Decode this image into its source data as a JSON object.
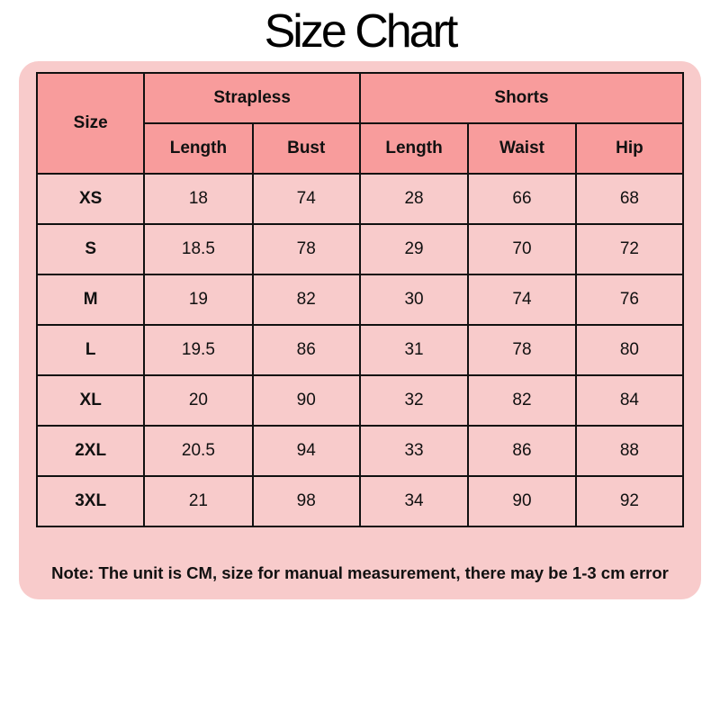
{
  "title": "Size Chart",
  "colors": {
    "panel": "#f8cbcb",
    "header": "#f89c9c"
  },
  "table": {
    "size_header": "Size",
    "groups": [
      "Strapless",
      "Shorts"
    ],
    "columns": [
      "Length",
      "Bust",
      "Length",
      "Waist",
      "Hip"
    ],
    "rows": [
      [
        "XS",
        "18",
        "74",
        "28",
        "66",
        "68"
      ],
      [
        "S",
        "18.5",
        "78",
        "29",
        "70",
        "72"
      ],
      [
        "M",
        "19",
        "82",
        "30",
        "74",
        "76"
      ],
      [
        "L",
        "19.5",
        "86",
        "31",
        "78",
        "80"
      ],
      [
        "XL",
        "20",
        "90",
        "32",
        "82",
        "84"
      ],
      [
        "2XL",
        "20.5",
        "94",
        "33",
        "86",
        "88"
      ],
      [
        "3XL",
        "21",
        "98",
        "34",
        "90",
        "92"
      ]
    ]
  },
  "note": "Note: The unit is CM, size for manual measurement, there may be 1-3 cm error"
}
